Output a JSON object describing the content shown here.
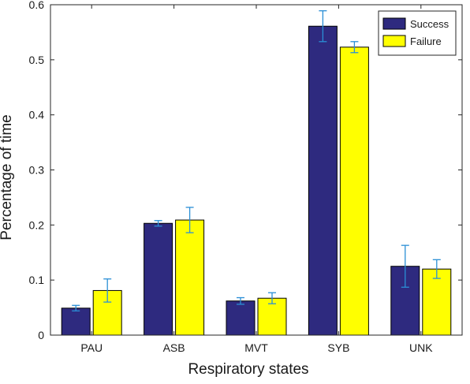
{
  "chart_data": {
    "type": "bar",
    "categories": [
      "PAU",
      "ASB",
      "MVT",
      "SYB",
      "UNK"
    ],
    "series": [
      {
        "name": "Success",
        "color": "#2e2a7f",
        "values": [
          0.049,
          0.203,
          0.062,
          0.561,
          0.125
        ],
        "error": [
          0.005,
          0.005,
          0.006,
          0.028,
          0.038
        ]
      },
      {
        "name": "Failure",
        "color": "#ffff00",
        "values": [
          0.081,
          0.209,
          0.067,
          0.523,
          0.12
        ],
        "error": [
          0.021,
          0.023,
          0.01,
          0.01,
          0.017
        ]
      }
    ],
    "error_bar_color": "#2a8fd6",
    "title": "",
    "xlabel": "Respiratory states",
    "ylabel": "Percentage of time",
    "ylim": [
      0,
      0.6
    ],
    "yticks": [
      "0",
      "0.1",
      "0.2",
      "0.3",
      "0.4",
      "0.5",
      "0.6"
    ],
    "grid": false,
    "legend_position": "top-right"
  }
}
